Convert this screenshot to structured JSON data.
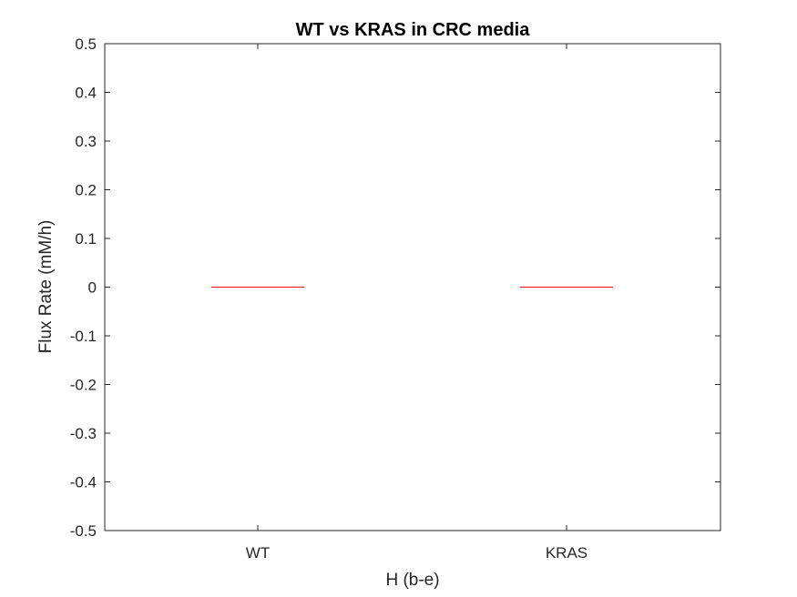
{
  "chart_data": {
    "type": "box",
    "title": "WT vs KRAS in CRC media",
    "xlabel": "H (b-e)",
    "ylabel": "Flux Rate (mM/h)",
    "categories": [
      "WT",
      "KRAS"
    ],
    "boxes": [
      {
        "category": "WT",
        "min": 0,
        "q1": 0,
        "median": 0,
        "q3": 0,
        "max": 0
      },
      {
        "category": "KRAS",
        "min": 0,
        "q1": 0,
        "median": 0,
        "q3": 0,
        "max": 0
      }
    ],
    "ylim": [
      -0.5,
      0.5
    ],
    "yticks": [
      0.5,
      0.4,
      0.3,
      0.2,
      0.1,
      0,
      -0.1,
      -0.2,
      -0.3,
      -0.4,
      -0.5
    ],
    "ytick_labels": [
      "0.5",
      "0.4",
      "0.3",
      "0.2",
      "0.1",
      "0",
      "-0.1",
      "-0.2",
      "-0.3",
      "-0.4",
      "-0.5"
    ],
    "grid": false,
    "colors": {
      "median": "#ff0000",
      "axes": "#262626",
      "text": "#262626",
      "background": "#ffffff"
    }
  }
}
